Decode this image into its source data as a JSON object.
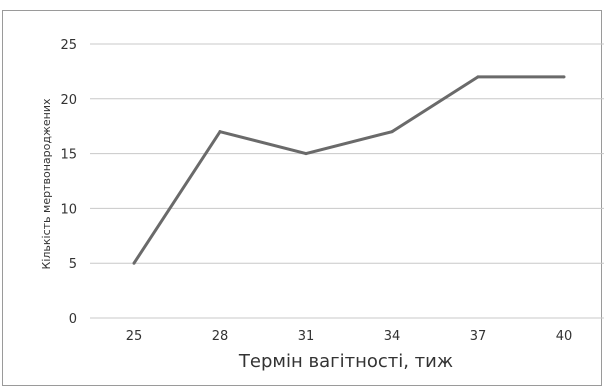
{
  "chart_data": {
    "type": "line",
    "title": "",
    "xlabel": "Термін вагітності, тиж",
    "ylabel": "Кількість мертвонароджених",
    "categories": [
      "25",
      "28",
      "31",
      "34",
      "37",
      "40"
    ],
    "series": [
      {
        "values": [
          5,
          17,
          15,
          17,
          22,
          22
        ]
      }
    ],
    "ylim": [
      0,
      25
    ],
    "yticks": [
      0,
      5,
      10,
      15,
      20,
      25
    ],
    "grid": true,
    "legend": "none",
    "colors": {
      "line": "#6a6a6a",
      "grid": "#c8c8c8"
    }
  }
}
